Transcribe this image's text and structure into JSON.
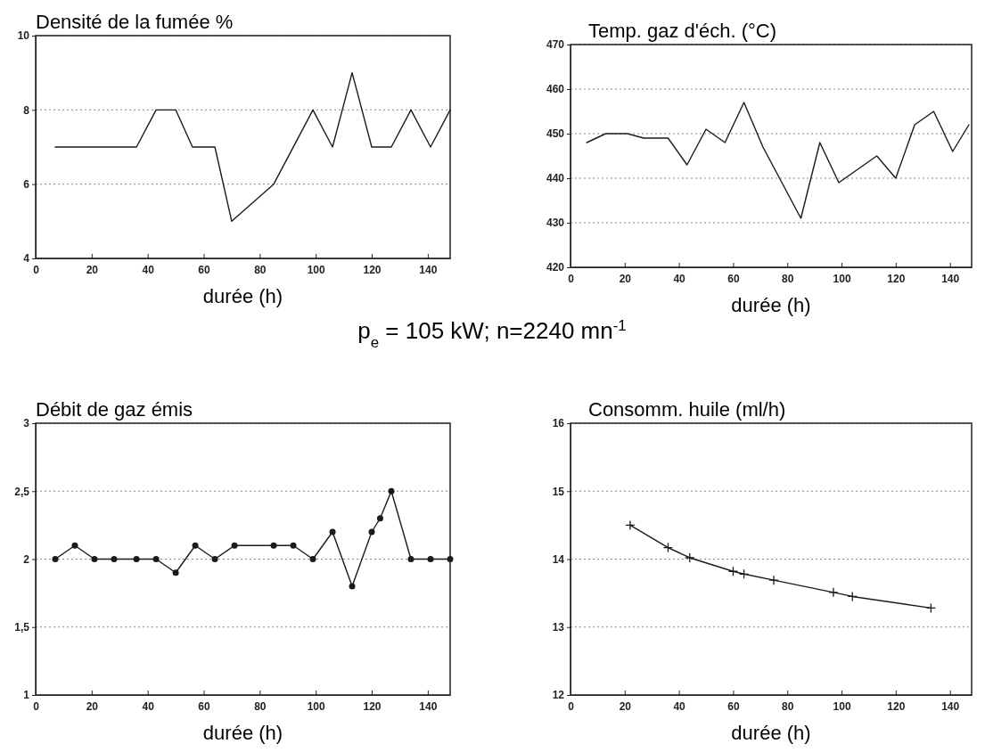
{
  "chart_data": [
    {
      "type": "line",
      "title": "Densité de la fumée %",
      "xlabel": "durée (h)",
      "xlim": [
        0,
        148
      ],
      "xticks": [
        0,
        20,
        40,
        60,
        80,
        100,
        120,
        140
      ],
      "ylim": [
        4,
        10
      ],
      "yticks": [
        4,
        6,
        8,
        10
      ],
      "grid": "y",
      "marker": "none",
      "line_style": "solid",
      "series": [
        {
          "color": "#1a1a1a",
          "x": [
            7,
            36,
            43,
            50,
            56,
            64,
            70,
            85,
            99,
            106,
            113,
            120,
            127,
            134,
            141,
            148
          ],
          "values": [
            7,
            7,
            8,
            8,
            7,
            7,
            5,
            6,
            8,
            7,
            9,
            7,
            7,
            8,
            7,
            8
          ]
        }
      ]
    },
    {
      "type": "line",
      "title": "Temp. gaz d'éch. (°C)",
      "xlabel": "durée (h)",
      "xlim": [
        0,
        148
      ],
      "xticks": [
        0,
        20,
        40,
        60,
        80,
        100,
        120,
        140
      ],
      "ylim": [
        420,
        470
      ],
      "yticks": [
        420,
        430,
        440,
        450,
        460,
        470
      ],
      "grid": "y",
      "marker": "none",
      "line_style": "solid",
      "series": [
        {
          "color": "#1a1a1a",
          "x": [
            6,
            13,
            21,
            27,
            36,
            43,
            50,
            57,
            64,
            71,
            85,
            92,
            99,
            113,
            120,
            127,
            134,
            141,
            147
          ],
          "values": [
            448,
            450,
            450,
            449,
            449,
            443,
            451,
            448,
            457,
            447,
            431,
            448,
            439,
            445,
            440,
            452,
            455,
            446,
            452
          ]
        }
      ]
    },
    {
      "type": "line",
      "title": "Débit de gaz émis",
      "xlabel": "durée (h)",
      "annotations": [
        "p$_{e}$ = 105 kW;  n=2240 mn$^{-1}$"
      ],
      "xlim": [
        0,
        148
      ],
      "xticks": [
        0,
        20,
        40,
        60,
        80,
        100,
        120,
        140
      ],
      "ylim": [
        1,
        3
      ],
      "yticks": [
        1,
        {
          "value": 1.5,
          "label": "1,5"
        },
        2,
        {
          "value": 2.5,
          "label": "2,5"
        },
        3
      ],
      "grid": "y",
      "marker": "circle",
      "line_style": "solid",
      "series": [
        {
          "color": "#1a1a1a",
          "x": [
            7,
            14,
            21,
            28,
            36,
            43,
            50,
            57,
            64,
            71,
            85,
            92,
            99,
            106,
            113,
            120,
            123,
            127,
            134,
            141,
            148
          ],
          "values": [
            2,
            2.1,
            2,
            2,
            2,
            2,
            1.9,
            2.1,
            2,
            2.1,
            2.1,
            2.1,
            2,
            2.2,
            1.8,
            2.2,
            2.3,
            2.5,
            2,
            2,
            2
          ]
        }
      ]
    },
    {
      "type": "line",
      "title": "Consomm. huile (ml/h)",
      "xlabel": "durée (h)",
      "xlim": [
        0,
        148
      ],
      "xticks": [
        0,
        20,
        40,
        60,
        80,
        100,
        120,
        140
      ],
      "ylim": [
        12,
        16
      ],
      "yticks": [
        12,
        13,
        14,
        15,
        16
      ],
      "grid": "y",
      "marker": "cross",
      "line_style": "solid",
      "series": [
        {
          "color": "#1a1a1a",
          "x": [
            22,
            36,
            44,
            60,
            64,
            75,
            97,
            104,
            133
          ],
          "values": [
            14.5,
            14.17,
            14.02,
            13.82,
            13.78,
            13.69,
            13.51,
            13.45,
            13.28
          ]
        }
      ]
    }
  ]
}
